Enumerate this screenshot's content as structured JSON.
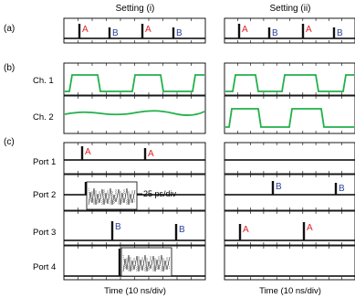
{
  "panel_labels": {
    "a": "(a)",
    "b": "(b)",
    "c": "(c)"
  },
  "column_titles": [
    "Setting (i)",
    "Setting (ii)"
  ],
  "channel_labels": [
    "Ch. 1",
    "Ch. 2"
  ],
  "port_labels": [
    "Port 1",
    "Port 2",
    "Port 3",
    "Port 4"
  ],
  "xlabel": "Time (10 ns/div)",
  "inset_scale": "25 ps/div",
  "pulse_labels": {
    "A": "A",
    "B": "B"
  },
  "colors": {
    "A": "#e0202a",
    "B": "#2b3f9a",
    "trace": "#22b04a",
    "frame": "#000000"
  }
}
